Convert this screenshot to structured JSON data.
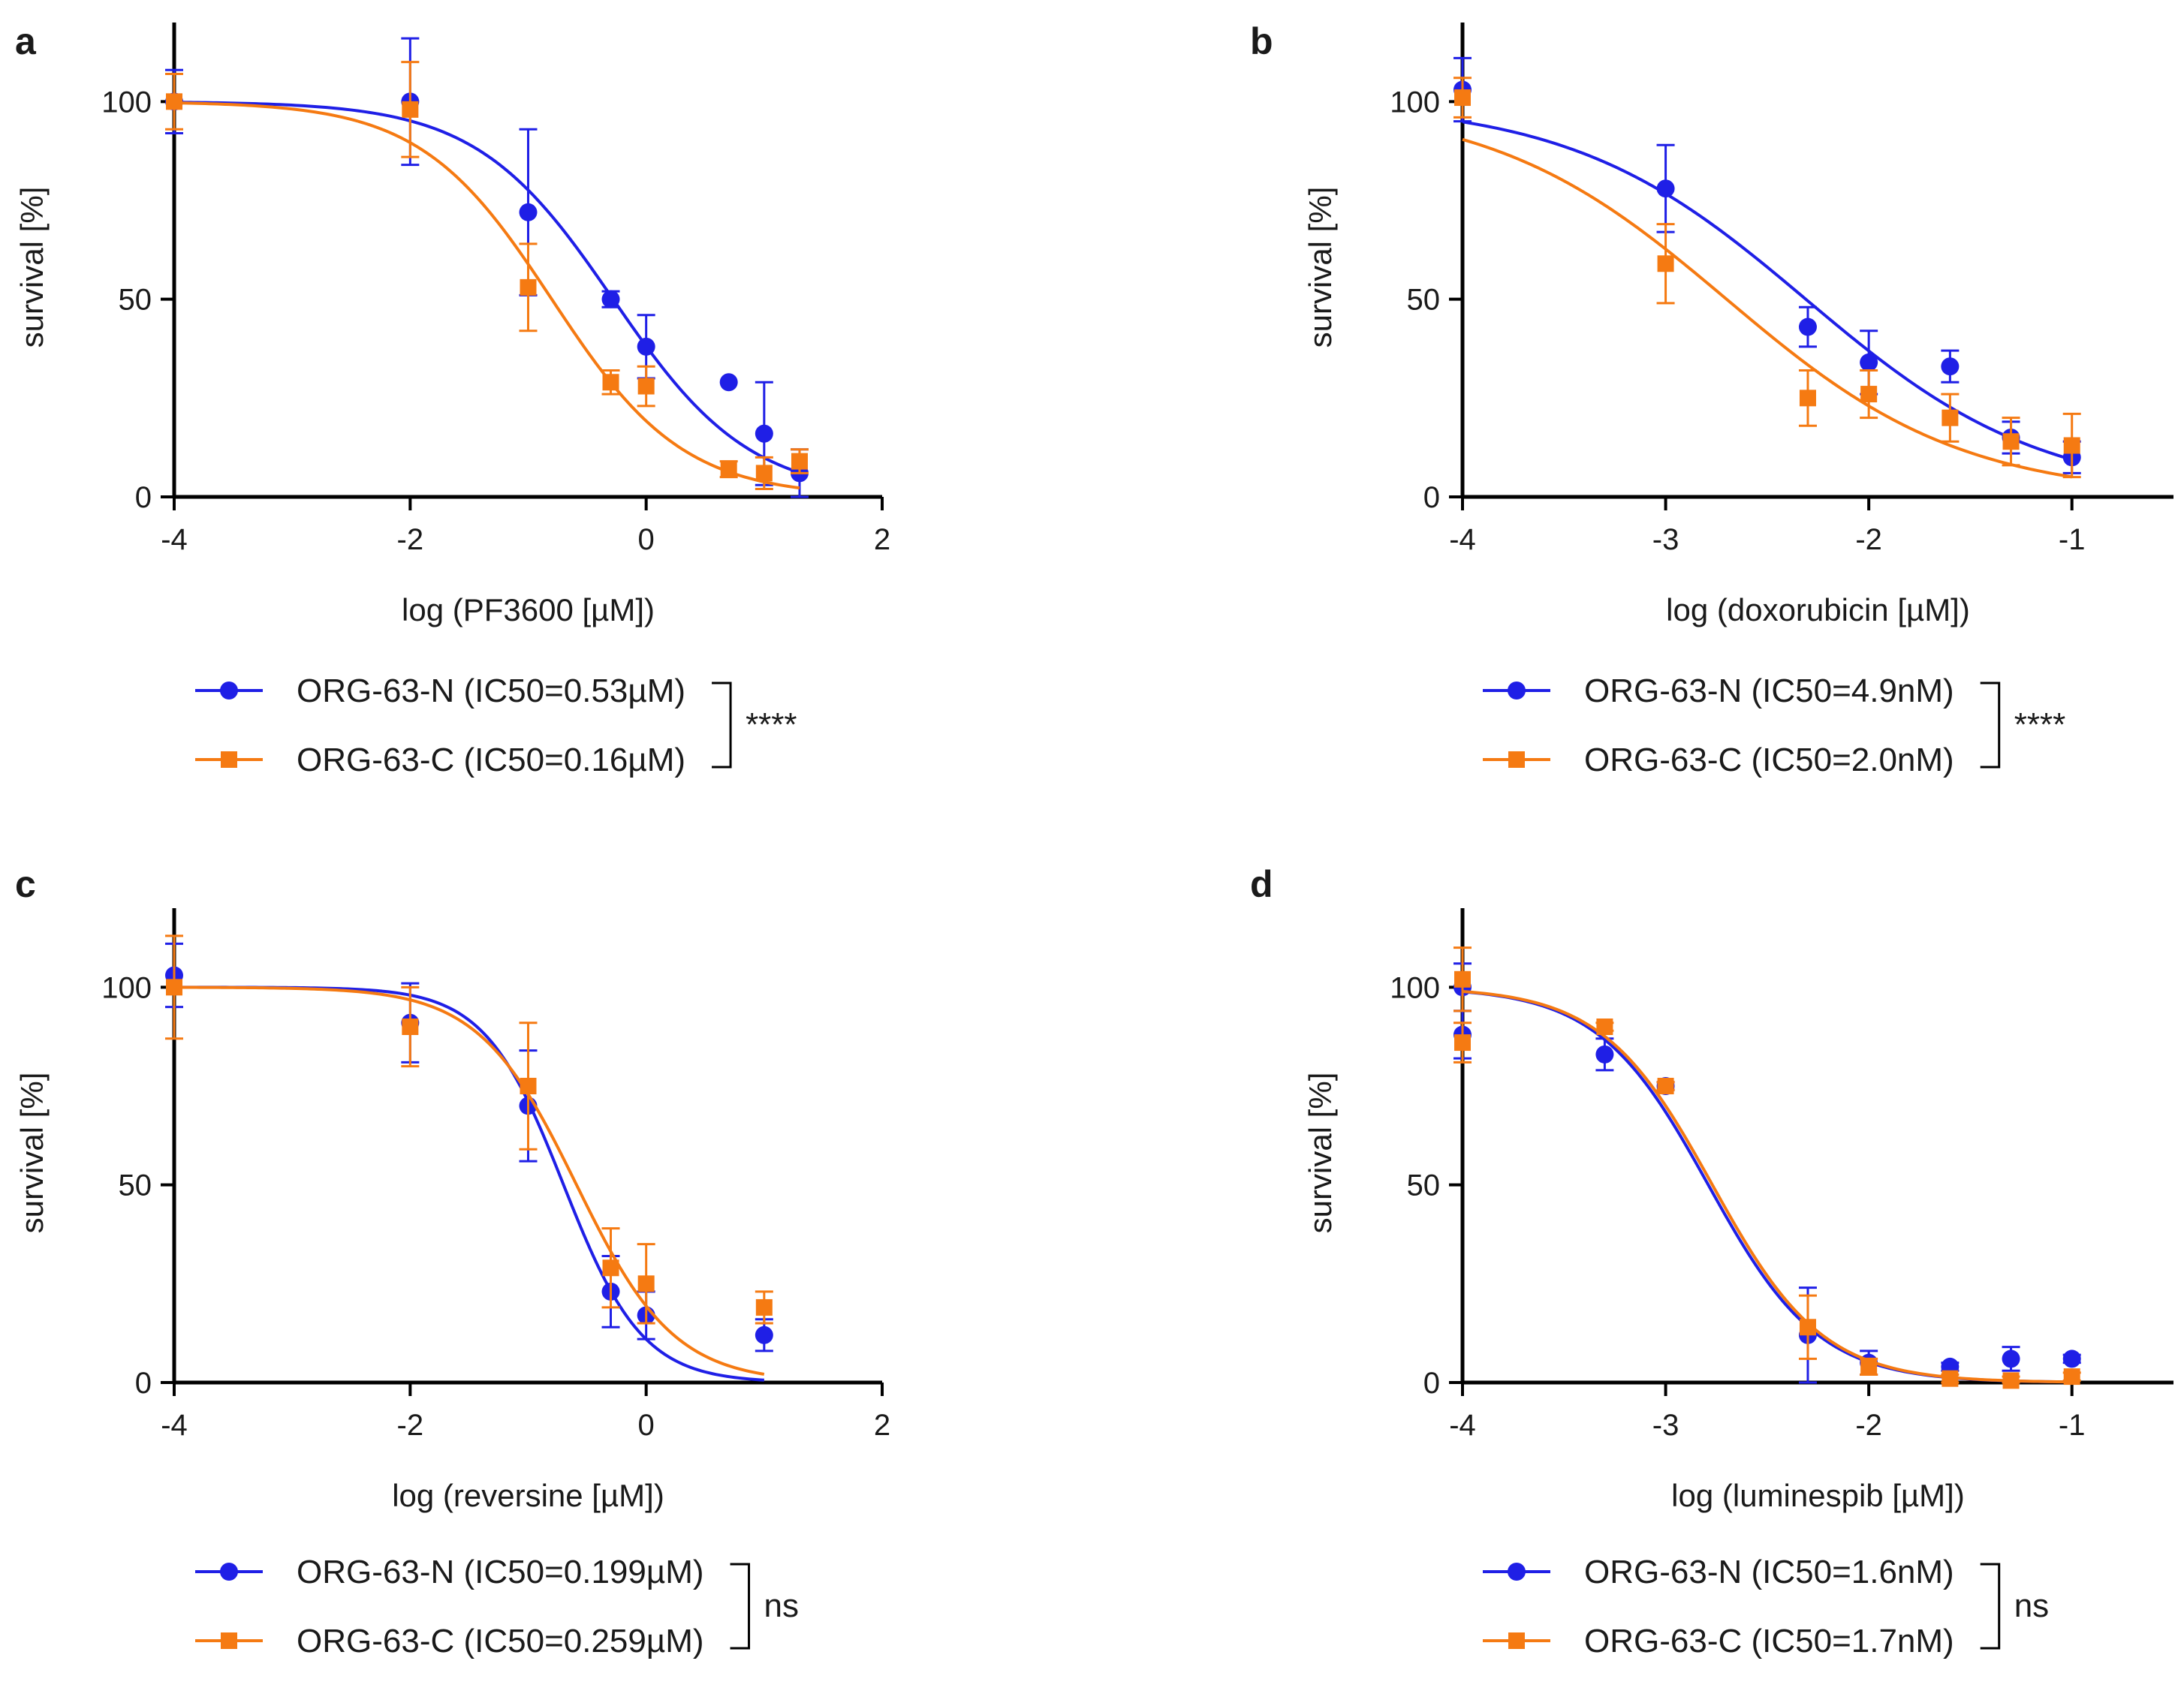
{
  "colors": {
    "blue": "#1f1fe6",
    "orange": "#f57a12",
    "axis": "#000000"
  },
  "chart_data": [
    {
      "panel": "a",
      "type": "scatter",
      "xlabel": "log (PF3600 [µM])",
      "ylabel": "survival [%]",
      "xlim": [
        -4,
        2
      ],
      "ylim": [
        0,
        120
      ],
      "xticks": [
        "-4",
        "-2",
        "0",
        "2"
      ],
      "yticks": [
        "0",
        "50",
        "100"
      ],
      "series": [
        {
          "name": "ORG-63-N (IC50=0.53µM)",
          "color": "blue",
          "marker": "circle",
          "ic50_log": -0.28,
          "hill": 0.75,
          "top": 100,
          "bottom": 0,
          "x": [
            -4,
            -2,
            -1,
            -0.3,
            0,
            0.7,
            1,
            1.3
          ],
          "y": [
            100,
            100,
            72,
            50,
            38,
            29,
            16,
            6
          ],
          "err": [
            8,
            16,
            21,
            2,
            8,
            0,
            13,
            6
          ]
        },
        {
          "name": "ORG-63-C (IC50=0.16µM)",
          "color": "orange",
          "marker": "square",
          "ic50_log": -0.8,
          "hill": 0.78,
          "top": 100,
          "bottom": 0,
          "x": [
            -4,
            -2,
            -1,
            -0.3,
            0,
            0.7,
            1,
            1.3
          ],
          "y": [
            100,
            98,
            53,
            29,
            28,
            7,
            6,
            9
          ],
          "err": [
            7,
            12,
            11,
            3,
            5,
            2,
            4,
            3
          ]
        }
      ],
      "significance": "****"
    },
    {
      "panel": "b",
      "type": "scatter",
      "xlabel": "log (doxorubicin [µM])",
      "ylabel": "survival [%]",
      "xlim": [
        -4,
        -0.5
      ],
      "ylim": [
        0,
        120
      ],
      "xticks": [
        "-4",
        "-3",
        "-2",
        "-1"
      ],
      "yticks": [
        "0",
        "50",
        "100"
      ],
      "series": [
        {
          "name": "ORG-63-N (IC50=4.9nM)",
          "color": "blue",
          "marker": "circle",
          "ic50_log": -2.31,
          "hill": 0.75,
          "top": 100,
          "bottom": 0,
          "x": [
            -4,
            -3,
            -2.3,
            -2,
            -1.6,
            -1.3,
            -1
          ],
          "y": [
            103,
            78,
            43,
            34,
            33,
            15,
            10
          ],
          "err": [
            8,
            11,
            5,
            8,
            4,
            4,
            4
          ]
        },
        {
          "name": "ORG-63-C (IC50=2.0nM)",
          "color": "orange",
          "marker": "square",
          "ic50_log": -2.7,
          "hill": 0.75,
          "top": 100,
          "bottom": 0,
          "x": [
            -4,
            -3,
            -2.3,
            -2,
            -1.6,
            -1.3,
            -1
          ],
          "y": [
            101,
            59,
            25,
            26,
            20,
            14,
            13
          ],
          "err": [
            5,
            10,
            7,
            6,
            6,
            6,
            8
          ]
        }
      ],
      "significance": "****"
    },
    {
      "panel": "c",
      "type": "scatter",
      "xlabel": "log (reversine [µM])",
      "ylabel": "survival [%]",
      "xlim": [
        -4,
        2
      ],
      "ylim": [
        0,
        120
      ],
      "xticks": [
        "-4",
        "-2",
        "0",
        "2"
      ],
      "yticks": [
        "0",
        "50",
        "100"
      ],
      "series": [
        {
          "name": "ORG-63-N (IC50=0.199µM)",
          "color": "blue",
          "marker": "circle",
          "ic50_log": -0.7,
          "hill": 1.3,
          "top": 100,
          "bottom": 0,
          "x": [
            -4,
            -2,
            -1,
            -0.3,
            0,
            1
          ],
          "y": [
            103,
            91,
            70,
            23,
            17,
            12
          ],
          "err": [
            8,
            10,
            14,
            9,
            6,
            4
          ]
        },
        {
          "name": "ORG-63-C (IC50=0.259µM)",
          "color": "orange",
          "marker": "square",
          "ic50_log": -0.59,
          "hill": 1.05,
          "top": 100,
          "bottom": 0,
          "x": [
            -4,
            -2,
            -1,
            -0.3,
            0,
            1
          ],
          "y": [
            100,
            90,
            75,
            29,
            25,
            19
          ],
          "err": [
            13,
            10,
            16,
            10,
            10,
            4
          ]
        }
      ],
      "significance": "ns"
    },
    {
      "panel": "d",
      "type": "scatter",
      "xlabel": "log (luminespib [µM])",
      "ylabel": "survival [%]",
      "xlim": [
        -4,
        -0.5
      ],
      "ylim": [
        0,
        120
      ],
      "xticks": [
        "-4",
        "-3",
        "-2",
        "-1"
      ],
      "yticks": [
        "0",
        "50",
        "100"
      ],
      "series": [
        {
          "name": "ORG-63-N (IC50=1.6nM)",
          "color": "blue",
          "marker": "circle",
          "ic50_log": -2.79,
          "hill": 1.6,
          "top": 100,
          "bottom": 0,
          "x": [
            -4,
            -4,
            -3.3,
            -3,
            -2.3,
            -2,
            -1.6,
            -1.3,
            -1
          ],
          "y": [
            100,
            88,
            83,
            75,
            12,
            5,
            4,
            6,
            6
          ],
          "err": [
            6,
            6,
            4,
            1,
            12,
            3,
            1,
            3,
            1
          ]
        },
        {
          "name": "ORG-63-C (IC50=1.7nM)",
          "color": "orange",
          "marker": "square",
          "ic50_log": -2.77,
          "hill": 1.6,
          "top": 100,
          "bottom": 0,
          "x": [
            -4,
            -4,
            -3.3,
            -3,
            -2.3,
            -2,
            -1.6,
            -1.3,
            -1
          ],
          "y": [
            102,
            86,
            90,
            75,
            14,
            4,
            1,
            0.5,
            1.5
          ],
          "err": [
            8,
            5,
            1,
            1,
            8,
            2,
            1,
            1,
            1
          ]
        }
      ],
      "significance": "ns"
    }
  ]
}
